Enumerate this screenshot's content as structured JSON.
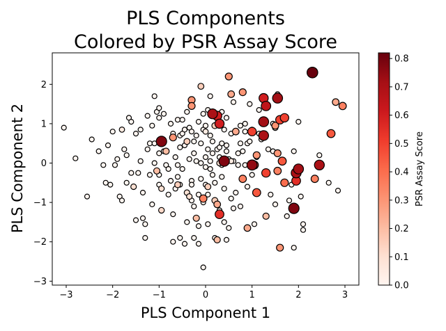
{
  "chart_data": {
    "type": "scatter",
    "title": [
      "PLS Components",
      "Colored by PSR Assay Score"
    ],
    "xlabel": "PLS Component 1",
    "ylabel": "PLS Component 2",
    "xlim": [
      -3.3,
      3.3
    ],
    "ylim": [
      -3.1,
      2.8
    ],
    "xticks": [
      -3,
      -2,
      -1,
      0,
      1,
      2,
      3
    ],
    "yticks": [
      -3,
      -2,
      -1,
      0,
      1,
      2
    ],
    "grid": false,
    "colormap": "Reds",
    "colorbar": {
      "label": "PSR Assay Score",
      "range": [
        0.0,
        0.82
      ],
      "ticks": [
        "0.0",
        "0.1",
        "0.2",
        "0.3",
        "0.4",
        "0.5",
        "0.6",
        "0.7",
        "0.8"
      ],
      "tick_values": [
        0.0,
        0.1,
        0.2,
        0.3,
        0.4,
        0.5,
        0.6,
        0.7,
        0.8
      ]
    },
    "points": [
      [
        -3.05,
        0.9,
        0
      ],
      [
        -2.8,
        0.12,
        0
      ],
      [
        -2.55,
        -0.85,
        0
      ],
      [
        -2.45,
        0.6,
        0
      ],
      [
        -2.3,
        0.3,
        0
      ],
      [
        -2.2,
        -0.05,
        0
      ],
      [
        -2.15,
        -0.5,
        0
      ],
      [
        -2.1,
        0.45,
        0
      ],
      [
        -2.05,
        -0.55,
        0
      ],
      [
        -2.0,
        0.8,
        0
      ],
      [
        -1.95,
        -0.05,
        0
      ],
      [
        -1.9,
        0.1,
        0
      ],
      [
        -1.85,
        -0.85,
        0
      ],
      [
        -1.8,
        -0.95,
        0
      ],
      [
        -1.8,
        0.85,
        0.05
      ],
      [
        -1.75,
        0.35,
        0
      ],
      [
        -1.7,
        -0.5,
        0
      ],
      [
        -1.7,
        0.2,
        0
      ],
      [
        -1.65,
        1.15,
        0
      ],
      [
        -1.6,
        -0.25,
        0
      ],
      [
        -1.6,
        1.05,
        0
      ],
      [
        -1.55,
        -0.6,
        0.1
      ],
      [
        -1.5,
        0.75,
        0
      ],
      [
        -1.5,
        -1.45,
        0
      ],
      [
        -1.45,
        -0.25,
        0
      ],
      [
        -1.4,
        0.05,
        0
      ],
      [
        -1.4,
        0.85,
        0
      ],
      [
        -1.35,
        -1.4,
        0
      ],
      [
        -1.35,
        -0.75,
        0
      ],
      [
        -1.3,
        -1.55,
        0
      ],
      [
        -1.3,
        -1.9,
        0
      ],
      [
        -1.25,
        0.35,
        0
      ],
      [
        -1.25,
        1.2,
        0
      ],
      [
        -1.2,
        -0.3,
        0
      ],
      [
        -1.2,
        0.5,
        0
      ],
      [
        -1.15,
        -1.05,
        0
      ],
      [
        -1.15,
        0.95,
        0
      ],
      [
        -1.1,
        1.7,
        0
      ],
      [
        -1.1,
        0.0,
        0
      ],
      [
        -1.1,
        0.5,
        0
      ],
      [
        -1.05,
        1.3,
        0
      ],
      [
        -1.05,
        -0.2,
        0.2
      ],
      [
        -1.0,
        -0.55,
        0
      ],
      [
        -1.0,
        0.25,
        0
      ],
      [
        -1.0,
        1.15,
        0
      ],
      [
        -1.0,
        -0.3,
        0
      ],
      [
        -1.0,
        1.4,
        0
      ],
      [
        -0.95,
        0.55,
        0.78
      ],
      [
        -0.95,
        -0.65,
        0.1
      ],
      [
        -0.95,
        -1.2,
        0.12
      ],
      [
        -0.9,
        0.3,
        0
      ],
      [
        -0.9,
        1.25,
        0
      ],
      [
        -0.85,
        0.3,
        0.2
      ],
      [
        -0.85,
        -0.05,
        0
      ],
      [
        -0.8,
        -0.8,
        0
      ],
      [
        -0.8,
        -0.15,
        0
      ],
      [
        -0.75,
        1.0,
        0
      ],
      [
        -0.75,
        -0.45,
        0
      ],
      [
        -0.7,
        0.75,
        0
      ],
      [
        -0.7,
        -1.3,
        0
      ],
      [
        -0.7,
        0.65,
        0.3
      ],
      [
        -0.7,
        -2.0,
        0
      ],
      [
        -0.65,
        -0.65,
        0
      ],
      [
        -0.65,
        0.15,
        0
      ],
      [
        -0.6,
        -0.35,
        0
      ],
      [
        -0.6,
        1.1,
        0
      ],
      [
        -0.6,
        -0.05,
        0
      ],
      [
        -0.55,
        0.4,
        0
      ],
      [
        -0.55,
        0.7,
        0
      ],
      [
        -0.55,
        -1.9,
        0
      ],
      [
        -0.55,
        -0.55,
        0
      ],
      [
        -0.5,
        0.75,
        0
      ],
      [
        -0.5,
        -0.15,
        0
      ],
      [
        -0.5,
        1.1,
        0
      ],
      [
        -0.45,
        0.85,
        0
      ],
      [
        -0.45,
        -2.05,
        0
      ],
      [
        -0.45,
        0.45,
        0
      ],
      [
        -0.4,
        -0.75,
        0.1
      ],
      [
        -0.4,
        0.55,
        0.15
      ],
      [
        -0.4,
        -1.5,
        0
      ],
      [
        -0.4,
        1.3,
        0
      ],
      [
        -0.35,
        -0.85,
        0.1
      ],
      [
        -0.35,
        0.1,
        0
      ],
      [
        -0.35,
        0.9,
        0
      ],
      [
        -0.3,
        0.8,
        0
      ],
      [
        -0.3,
        -0.45,
        0
      ],
      [
        -0.3,
        -0.55,
        0
      ],
      [
        -0.3,
        1.6,
        0.3
      ],
      [
        -0.3,
        1.45,
        0.3
      ],
      [
        -0.3,
        -0.95,
        0
      ],
      [
        -0.25,
        0.55,
        0
      ],
      [
        -0.25,
        0.25,
        0
      ],
      [
        -0.25,
        -1.1,
        0
      ],
      [
        -0.25,
        -1.9,
        0
      ],
      [
        -0.2,
        -1.4,
        0.2
      ],
      [
        -0.2,
        0.7,
        0
      ],
      [
        -0.2,
        0.05,
        0
      ],
      [
        -0.15,
        1.05,
        0
      ],
      [
        -0.15,
        -0.8,
        0
      ],
      [
        -0.15,
        -2.05,
        0
      ],
      [
        -0.15,
        -1.6,
        0
      ],
      [
        -0.1,
        0.0,
        0
      ],
      [
        -0.1,
        0.5,
        0
      ],
      [
        -0.1,
        1.95,
        0.15
      ],
      [
        -0.1,
        -0.4,
        0
      ],
      [
        -0.05,
        1.25,
        0
      ],
      [
        -0.05,
        -1.0,
        0
      ],
      [
        -0.05,
        -2.65,
        0
      ],
      [
        -0.05,
        0.85,
        0
      ],
      [
        0.0,
        0.95,
        0
      ],
      [
        0.0,
        -0.55,
        0
      ],
      [
        0.0,
        0.15,
        0
      ],
      [
        0.0,
        -0.1,
        0
      ],
      [
        0.0,
        0.8,
        0.05
      ],
      [
        0.05,
        -0.8,
        0
      ],
      [
        0.05,
        0.35,
        0
      ],
      [
        0.05,
        -1.55,
        0
      ],
      [
        0.05,
        1.35,
        0
      ],
      [
        0.05,
        -0.6,
        0.15
      ],
      [
        0.1,
        0.05,
        0
      ],
      [
        0.1,
        -0.15,
        0
      ],
      [
        0.1,
        0.7,
        0
      ],
      [
        0.1,
        1.7,
        0
      ],
      [
        0.15,
        1.2,
        0
      ],
      [
        0.15,
        -0.3,
        0
      ],
      [
        0.15,
        0.55,
        0
      ],
      [
        0.15,
        0.25,
        0
      ],
      [
        0.15,
        1.25,
        0.7
      ],
      [
        0.2,
        0.95,
        0.15
      ],
      [
        0.2,
        -0.95,
        0.15
      ],
      [
        0.2,
        -1.9,
        0
      ],
      [
        0.2,
        -0.5,
        0
      ],
      [
        0.25,
        0.35,
        0
      ],
      [
        0.25,
        -1.95,
        0.2
      ],
      [
        0.25,
        1.2,
        0.6
      ],
      [
        0.25,
        -1.05,
        0.25
      ],
      [
        0.3,
        0.4,
        0
      ],
      [
        0.3,
        0.0,
        0.1
      ],
      [
        0.3,
        -1.3,
        0.55
      ],
      [
        0.3,
        -1.2,
        0
      ],
      [
        0.3,
        1.0,
        0.6
      ],
      [
        0.3,
        0.15,
        0
      ],
      [
        0.35,
        -0.05,
        0
      ],
      [
        0.35,
        1.3,
        0
      ],
      [
        0.35,
        0.5,
        0
      ],
      [
        0.35,
        -0.35,
        0
      ],
      [
        0.4,
        0.85,
        0
      ],
      [
        0.4,
        -1.5,
        0
      ],
      [
        0.4,
        0.05,
        0.78
      ],
      [
        0.4,
        -0.65,
        0
      ],
      [
        0.45,
        1.15,
        0
      ],
      [
        0.45,
        0.3,
        0
      ],
      [
        0.45,
        -1.95,
        0
      ],
      [
        0.45,
        0.45,
        0
      ],
      [
        0.5,
        2.2,
        0.3
      ],
      [
        0.5,
        0.1,
        0
      ],
      [
        0.5,
        -1.65,
        0
      ],
      [
        0.55,
        0.75,
        0
      ],
      [
        0.55,
        1.75,
        0.25
      ],
      [
        0.55,
        -0.9,
        0
      ],
      [
        0.6,
        0.05,
        0
      ],
      [
        0.6,
        -1.15,
        0
      ],
      [
        0.6,
        1.55,
        0
      ],
      [
        0.65,
        0.8,
        0.25
      ],
      [
        0.65,
        -0.75,
        0
      ],
      [
        0.7,
        0.25,
        0
      ],
      [
        0.7,
        -0.05,
        0
      ],
      [
        0.75,
        0.95,
        0
      ],
      [
        0.75,
        -1.1,
        0
      ],
      [
        0.75,
        0.5,
        0
      ],
      [
        0.8,
        -0.4,
        0.35
      ],
      [
        0.8,
        1.8,
        0.3
      ],
      [
        0.8,
        0.3,
        0
      ],
      [
        0.85,
        1.0,
        0
      ],
      [
        0.85,
        0.8,
        0
      ],
      [
        0.85,
        -0.05,
        0
      ],
      [
        0.9,
        -0.6,
        0
      ],
      [
        0.9,
        -1.65,
        0.25
      ],
      [
        0.9,
        0.5,
        0
      ],
      [
        0.95,
        0.55,
        0
      ],
      [
        0.95,
        1.5,
        0
      ],
      [
        1.0,
        0.85,
        0
      ],
      [
        1.0,
        -0.3,
        0
      ],
      [
        1.0,
        -0.05,
        0.75
      ],
      [
        1.0,
        0.8,
        0.5
      ],
      [
        1.05,
        -0.05,
        0.45
      ],
      [
        1.05,
        -1.55,
        0
      ],
      [
        1.1,
        0.2,
        0.3
      ],
      [
        1.1,
        0.15,
        0
      ],
      [
        1.1,
        -0.75,
        0.45
      ],
      [
        1.15,
        1.35,
        0
      ],
      [
        1.15,
        0.75,
        0
      ],
      [
        1.2,
        0.6,
        0
      ],
      [
        1.25,
        1.65,
        0.6
      ],
      [
        1.25,
        0.7,
        0.7
      ],
      [
        1.25,
        1.05,
        0.72
      ],
      [
        1.3,
        -0.25,
        0.5
      ],
      [
        1.3,
        1.45,
        0.65
      ],
      [
        1.3,
        -1.35,
        0.2
      ],
      [
        1.35,
        0.35,
        0
      ],
      [
        1.4,
        -0.8,
        0
      ],
      [
        1.45,
        1.0,
        0
      ],
      [
        1.45,
        0.3,
        0
      ],
      [
        1.5,
        0.95,
        0.3
      ],
      [
        1.5,
        -1.05,
        0
      ],
      [
        1.55,
        1.65,
        0.72
      ],
      [
        1.55,
        0.25,
        0.3
      ],
      [
        1.55,
        -0.2,
        0.35
      ],
      [
        1.55,
        1.75,
        0
      ],
      [
        1.6,
        -2.15,
        0.3
      ],
      [
        1.6,
        1.1,
        0.5
      ],
      [
        1.65,
        0.05,
        0.45
      ],
      [
        1.7,
        -0.5,
        0.4
      ],
      [
        1.7,
        1.15,
        0.5
      ],
      [
        1.75,
        -1.35,
        0
      ],
      [
        1.8,
        -0.95,
        0
      ],
      [
        1.85,
        -0.55,
        0
      ],
      [
        1.9,
        0.3,
        0
      ],
      [
        1.9,
        -1.15,
        0.78
      ],
      [
        1.9,
        -2.15,
        0
      ],
      [
        1.95,
        -0.25,
        0.7
      ],
      [
        1.95,
        -0.45,
        0.55
      ],
      [
        2.0,
        -0.15,
        0.72
      ],
      [
        2.0,
        1.05,
        0
      ],
      [
        2.05,
        -0.85,
        0
      ],
      [
        2.1,
        -1.55,
        0
      ],
      [
        2.1,
        -1.7,
        0
      ],
      [
        2.3,
        2.3,
        0.82
      ],
      [
        2.35,
        -0.4,
        0.35
      ],
      [
        2.45,
        0.2,
        0
      ],
      [
        2.45,
        -0.05,
        0.7
      ],
      [
        2.65,
        -0.5,
        0
      ],
      [
        2.7,
        0.75,
        0.45
      ],
      [
        2.8,
        1.55,
        0.25
      ],
      [
        2.85,
        -0.7,
        0
      ],
      [
        2.95,
        1.45,
        0.35
      ],
      [
        1.5,
        0.9,
        0.1
      ],
      [
        -0.05,
        -0.9,
        0.35
      ],
      [
        0.55,
        0.05,
        0.05
      ],
      [
        -0.6,
        -0.55,
        0.15
      ]
    ]
  }
}
